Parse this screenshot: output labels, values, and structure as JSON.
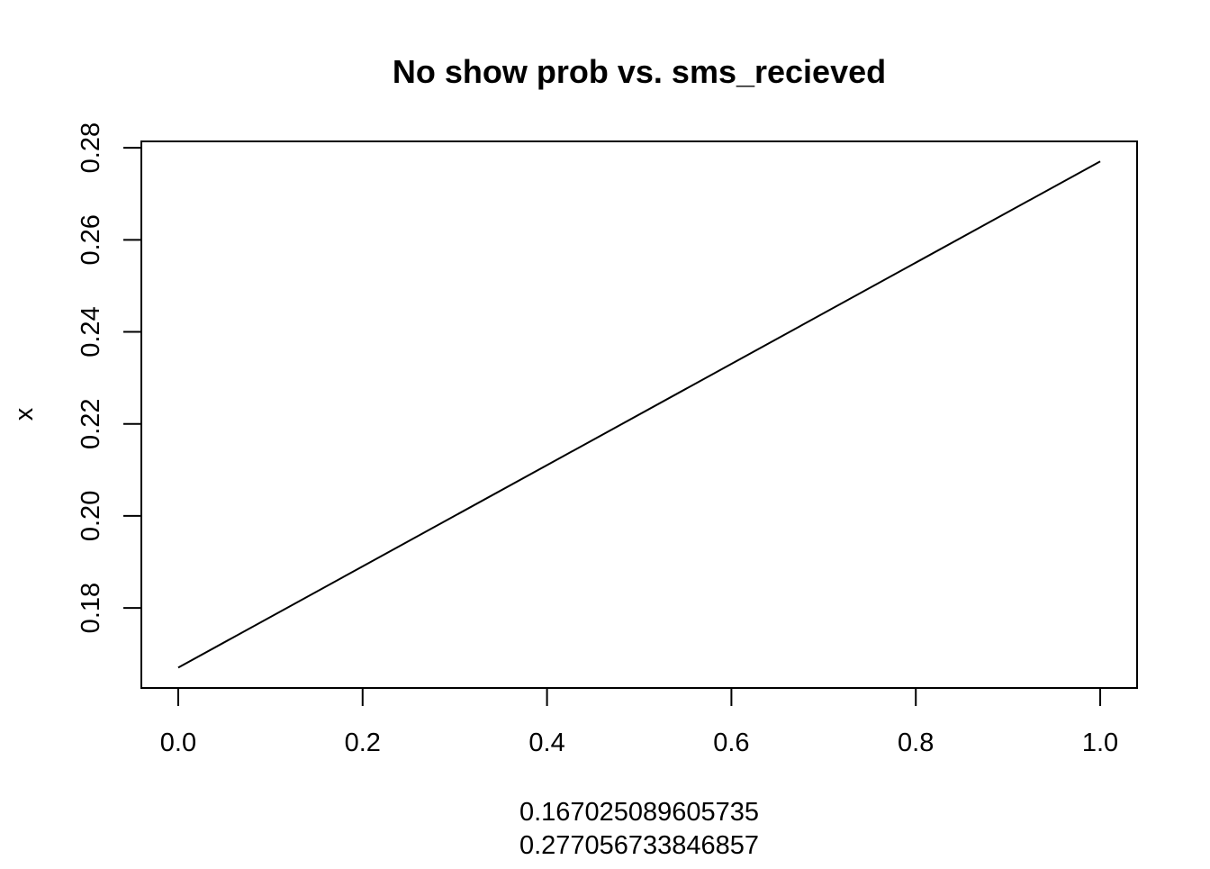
{
  "chart_data": {
    "type": "line",
    "title": "No show prob vs. sms_recieved",
    "xlabel_lines": [
      "0.167025089605735",
      "0.277056733846857"
    ],
    "ylabel": "x",
    "x": [
      0,
      1
    ],
    "series": [
      {
        "values": [
          0.167025089605735,
          0.277056733846857
        ]
      }
    ],
    "xlim": [
      -0.04,
      1.04
    ],
    "ylim": [
      0.1626,
      0.2814
    ],
    "x_ticks": [
      0.0,
      0.2,
      0.4,
      0.6,
      0.8,
      1.0
    ],
    "x_tick_labels": [
      "0.0",
      "0.2",
      "0.4",
      "0.6",
      "0.8",
      "1.0"
    ],
    "y_ticks": [
      0.18,
      0.2,
      0.22,
      0.24,
      0.26,
      0.28
    ],
    "y_tick_labels": [
      "0.18",
      "0.20",
      "0.22",
      "0.24",
      "0.26",
      "0.28"
    ],
    "grid": false,
    "line_color": "#000000",
    "axis_color": "#000000"
  }
}
